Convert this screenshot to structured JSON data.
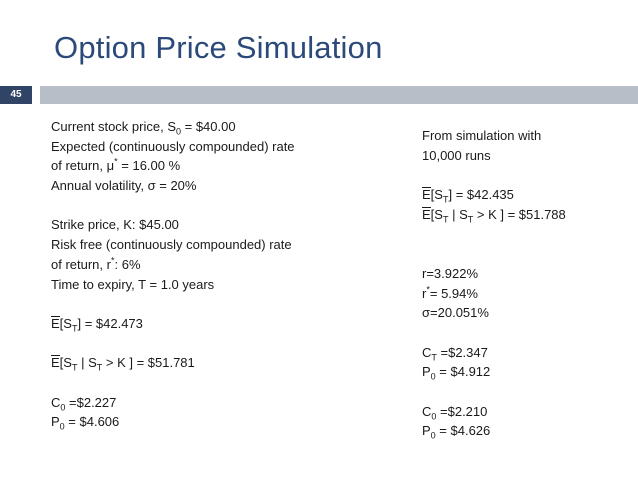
{
  "slide": {
    "title": "Option Price Simulation",
    "slide_number": "45"
  },
  "left": {
    "stock_price": {
      "label": "Current stock price, S",
      "sub": "0",
      "value": " = $40.00"
    },
    "expected_return_line1": "Expected (continuously compounded) rate",
    "expected_return_line2": {
      "pre": "of return, ",
      "symbol": "μ",
      "sup": "*",
      "value": " =  16.00 %"
    },
    "volatility": {
      "pre": "Annual volatility, ",
      "symbol": "σ",
      "value": " = 20%"
    },
    "strike": "Strike price, K: $45.00",
    "risk_free_line1": "Risk free (continuously compounded) rate",
    "risk_free_line2": {
      "pre": "of return, r",
      "sup": "*",
      "value": ": 6%"
    },
    "expiry": "Time to expiry, T = 1.0 years",
    "e_st": {
      "e": "E",
      "pre": "[S",
      "sub": "T",
      "value": "] = $42.473"
    },
    "e_st_cond": {
      "e": "E",
      "pre": "[S",
      "sub": "T",
      "mid": " | S",
      "sub2": "T",
      "value": " > K ] = $51.781"
    },
    "c0": {
      "pre": "C",
      "sub": "0",
      "value": " =$2.227"
    },
    "p0": {
      "pre": "P",
      "sub": "0",
      "value": " = $4.606"
    }
  },
  "right": {
    "sim_line1": "From simulation with",
    "sim_line2": "10,000 runs",
    "e_st": {
      "e": "E",
      "pre": "[S",
      "sub": "T",
      "value": "] = $42.435"
    },
    "e_st_cond": {
      "e": "E",
      "pre": "[S",
      "sub": "T",
      "mid": " | S",
      "sub2": "T",
      "value": " > K ] = $51.788"
    },
    "r": "r=3.922%",
    "r_star": {
      "pre": "r",
      "sup": "*",
      "value": "= 5.94%"
    },
    "sigma": {
      "symbol": "σ",
      "value": "=20.051%"
    },
    "ct": {
      "pre": "C",
      "sub": "T",
      "value": " =$2.347"
    },
    "p0a": {
      "pre": "P",
      "sub": "0",
      "value": " = $4.912"
    },
    "c0": {
      "pre": "C",
      "sub": "0",
      "value": " =$2.210"
    },
    "p0b": {
      "pre": "P",
      "sub": "0",
      "value": " = $4.626"
    }
  }
}
